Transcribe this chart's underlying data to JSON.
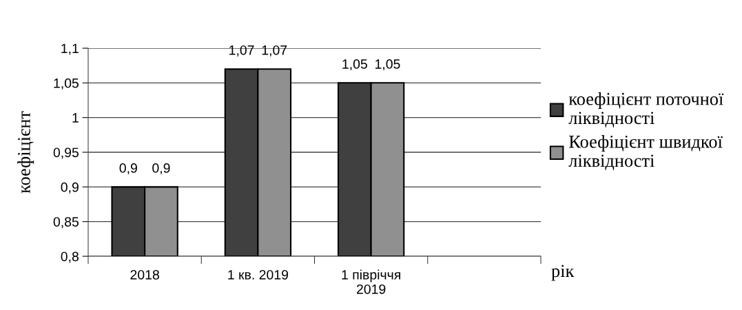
{
  "chart_data": {
    "type": "bar",
    "ylabel": "коефіцієнт",
    "xlabel": "рік",
    "categories": [
      "2018",
      "1 кв. 2019",
      "1 півріччя\n2019",
      null
    ],
    "series": [
      {
        "name": "коефіцієнт поточної\nліквідності",
        "color": "#404040",
        "values": [
          0.9,
          1.07,
          1.05,
          null
        ],
        "value_labels": [
          "0,9",
          "1,07",
          "1,05",
          null
        ]
      },
      {
        "name": "Коефіцієнт швидкої\nліквідності",
        "color": "#909090",
        "values": [
          0.9,
          1.07,
          1.05,
          null
        ],
        "value_labels": [
          "0,9",
          "1,07",
          "1,05",
          null
        ]
      }
    ],
    "ylim": [
      0.8,
      1.1
    ],
    "yticks": [
      {
        "value": 0.8,
        "label": "0,8"
      },
      {
        "value": 0.85,
        "label": "0,85"
      },
      {
        "value": 0.9,
        "label": "0,9"
      },
      {
        "value": 0.95,
        "label": "0,95"
      },
      {
        "value": 1,
        "label": "1"
      },
      {
        "value": 1.05,
        "label": "1,05"
      },
      {
        "value": 1.1,
        "label": "1,1"
      }
    ],
    "grid": "y",
    "legend": "right"
  }
}
